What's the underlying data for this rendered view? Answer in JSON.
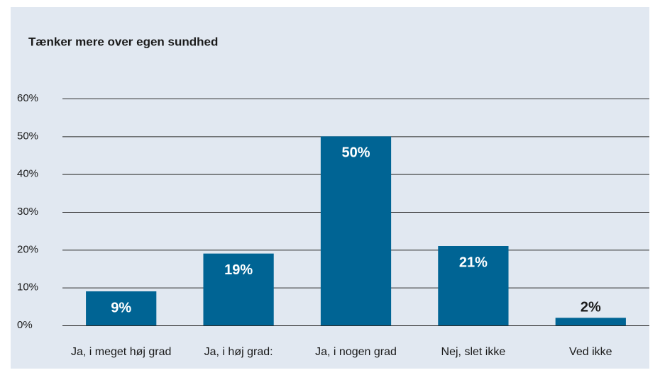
{
  "chart_data": {
    "type": "bar",
    "title": "Tænker mere over egen sundhed",
    "categories": [
      "Ja, i meget høj grad",
      "Ja, i høj grad:",
      "Ja, i nogen grad",
      "Nej, slet ikke",
      "Ved ikke"
    ],
    "values": [
      9,
      19,
      50,
      21,
      2
    ],
    "value_labels": [
      "9%",
      "19%",
      "50%",
      "21%",
      "2%"
    ],
    "color": "#006494",
    "ylim": [
      0,
      60
    ],
    "yticks": [
      {
        "value": 0,
        "label": "0%"
      },
      {
        "value": 10,
        "label": "10%"
      },
      {
        "value": 20,
        "label": "20%"
      },
      {
        "value": 30,
        "label": "30%"
      },
      {
        "value": 40,
        "label": "40%"
      },
      {
        "value": 50,
        "label": "50%"
      },
      {
        "value": 60,
        "label": "60%"
      }
    ],
    "grid": true
  }
}
